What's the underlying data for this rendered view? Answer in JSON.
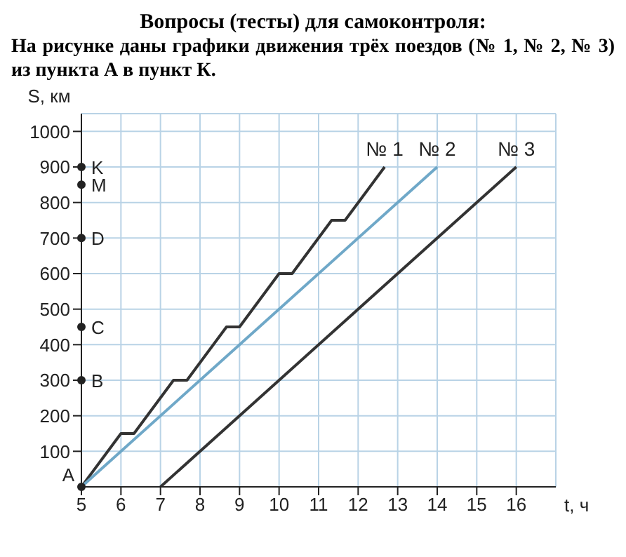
{
  "chart_data": {
    "type": "line",
    "title": "Вопросы (тесты) для самоконтроля:",
    "subtitle": "На рисунке даны графики движения трёх поездов (№ 1, № 2, № 3) из пункта А в пункт К.",
    "xlabel": "t, ч",
    "ylabel": "S, км",
    "xlim": [
      5,
      17
    ],
    "xticks": [
      5,
      6,
      7,
      8,
      9,
      10,
      11,
      12,
      13,
      14,
      15,
      16
    ],
    "ylim": [
      0,
      1050
    ],
    "yticks": [
      100,
      200,
      300,
      400,
      500,
      600,
      700,
      800,
      900,
      1000
    ],
    "grid": true,
    "marker": "none",
    "line_style": "solid",
    "series": [
      {
        "name": "№ 1",
        "color": "#333333",
        "x": [
          5,
          6,
          6.33,
          7.33,
          7.67,
          8.67,
          9,
          10,
          10.33,
          11.33,
          11.67,
          12.67
        ],
        "values": [
          0,
          150,
          150,
          300,
          300,
          450,
          450,
          600,
          600,
          750,
          750,
          900
        ]
      },
      {
        "name": "№ 2",
        "color": "#6fa8c8",
        "x": [
          5,
          14
        ],
        "values": [
          0,
          900
        ]
      },
      {
        "name": "№ 3",
        "color": "#333333",
        "x": [
          7,
          16
        ],
        "values": [
          0,
          900
        ]
      },
      {
        "type": "scatter",
        "color": "#222222",
        "marker": "circle",
        "x": [
          5,
          5,
          5,
          5,
          5,
          5
        ],
        "values": [
          0,
          300,
          450,
          700,
          850,
          900
        ],
        "value_labels": [
          "A",
          "B",
          "C",
          "D",
          "M",
          "K"
        ]
      }
    ]
  }
}
